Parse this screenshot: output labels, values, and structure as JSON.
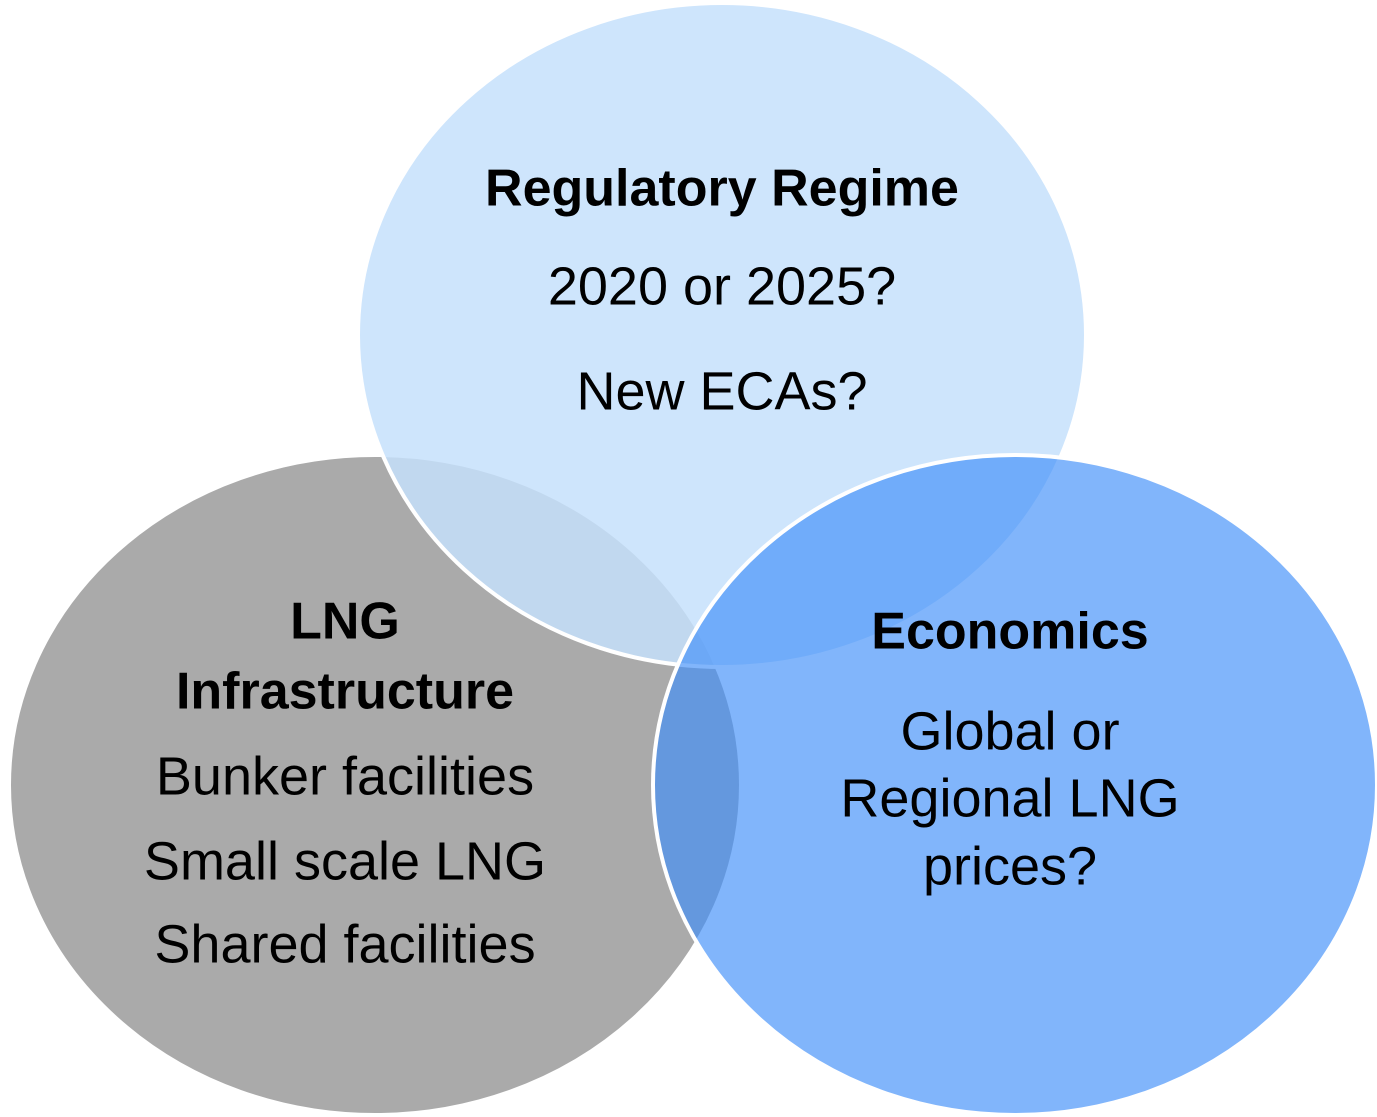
{
  "circles": [
    {
      "title": "Regulatory Regime",
      "lines": [
        "2020 or 2025?",
        "New ECAs?"
      ]
    },
    {
      "title": "LNG Infrastructure",
      "title_lines": [
        "LNG",
        "Infrastructure"
      ],
      "lines": [
        "Bunker facilities",
        "Small scale LNG",
        "Shared facilities"
      ]
    },
    {
      "title": "Economics",
      "lines": [
        "Global or",
        "Regional LNG",
        "prices?"
      ]
    }
  ]
}
